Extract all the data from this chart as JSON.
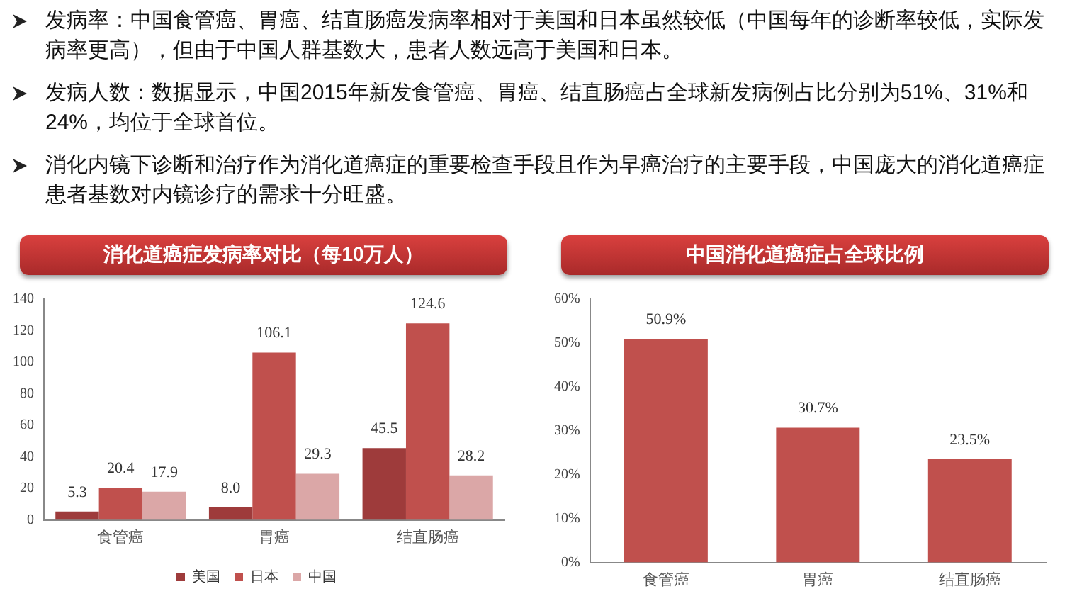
{
  "chart_data": [
    {
      "type": "bar",
      "title": "消化道癌症发病率对比（每10万人）",
      "annotations": [
        "发病率：中国食管癌、胃癌、结直肠癌发病率相对于美国和日本虽然较低（中国每年的诊断率较低，实际发病率更高），但由于中国人群基数大，患者人数远高于美国和日本。",
        "发病人数：数据显示，中国2015年新发食管癌、胃癌、结直肠癌占全球新发病例占比分别为51%、31%和24%，均位于全球首位。",
        "消化内镜下诊断和治疗作为消化道癌症的重要检查手段且作为早癌治疗的主要手段，中国庞大的消化道癌症患者基数对内镜诊疗的需求十分旺盛。"
      ],
      "categories": [
        "食管癌",
        "胃癌",
        "结直肠癌"
      ],
      "series": [
        {
          "name": "美国",
          "color": "#9e3b3b",
          "values": [
            5.3,
            8.0,
            45.5
          ],
          "value_labels": [
            "5.3",
            "8.0",
            "45.5"
          ]
        },
        {
          "name": "日本",
          "color": "#c0504d",
          "values": [
            20.4,
            106.1,
            124.6
          ],
          "value_labels": [
            "20.4",
            "106.1",
            "124.6"
          ]
        },
        {
          "name": "中国",
          "color": "#dba7a7",
          "values": [
            17.9,
            29.3,
            28.2
          ],
          "value_labels": [
            "17.9",
            "29.3",
            "28.2"
          ]
        }
      ],
      "ylim": [
        0,
        140
      ],
      "yticks": [
        0,
        20,
        40,
        60,
        80,
        100,
        120,
        140
      ],
      "legend": "bottom"
    },
    {
      "type": "bar",
      "title": "中国消化道癌症占全球比例",
      "categories": [
        "食管癌",
        "胃癌",
        "结直肠癌"
      ],
      "values": [
        50.9,
        30.7,
        23.5
      ],
      "color": "#c0504d",
      "value_labels": [
        "50.9%",
        "30.7%",
        "23.5%"
      ],
      "ylim": [
        0,
        60
      ],
      "yticks": [
        {
          "value": 0,
          "label": "0%"
        },
        {
          "value": 10,
          "label": "10%"
        },
        {
          "value": 20,
          "label": "20%"
        },
        {
          "value": 30,
          "label": "30%"
        },
        {
          "value": 40,
          "label": "40%"
        },
        {
          "value": 50,
          "label": "50%"
        },
        {
          "value": 60,
          "label": "60%"
        }
      ]
    }
  ]
}
